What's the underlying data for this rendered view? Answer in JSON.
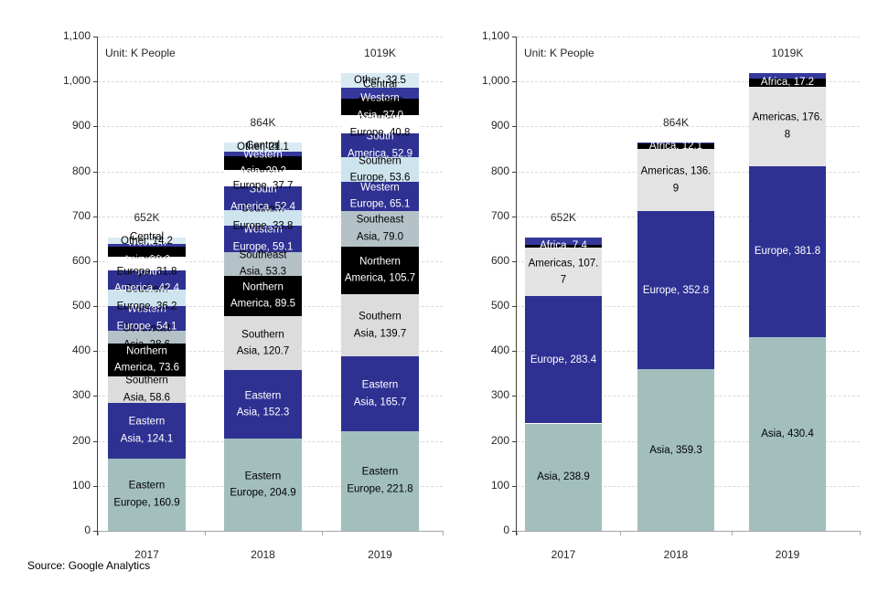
{
  "source_note": "Source: Google Analytics",
  "axis": {
    "tick_labels": [
      "0",
      "100",
      "200",
      "300",
      "400",
      "500",
      "600",
      "700",
      "800",
      "900",
      "1,000",
      "1,100"
    ],
    "max": 1100,
    "step": 100,
    "grid_color": "#D9D9D9",
    "axis_color": "#404040",
    "baseline_color": "#A6A6A6"
  },
  "chart_data": [
    {
      "type": "bar",
      "stacked": true,
      "unit_label": "Unit: K People",
      "categories": [
        "2017",
        "2018",
        "2019"
      ],
      "totals": [
        "652K",
        "864K",
        "1019K"
      ],
      "ylim": [
        0,
        1100
      ],
      "grid": "dashed-horizontal",
      "legend": "none",
      "series": [
        {
          "id": "eastern-europe",
          "name": "Eastern Europe",
          "color": "#A2BFBE",
          "label_color": "#000000",
          "values": [
            160.9,
            204.9,
            221.8
          ],
          "labels": [
            [
              "Eastern",
              "Europe, 160.9"
            ],
            [
              "Eastern",
              "Europe, 204.9"
            ],
            [
              "Eastern",
              "Europe, 221.8"
            ]
          ]
        },
        {
          "id": "eastern-asia",
          "name": "Eastern Asia",
          "color": "#2E3192",
          "label_color": "#FFFFFF",
          "values": [
            124.1,
            152.3,
            165.7
          ],
          "labels": [
            [
              "Eastern",
              "Asia, 124.1"
            ],
            [
              "Eastern",
              "Asia, 152.3"
            ],
            [
              "Eastern",
              "Asia, 165.7"
            ]
          ]
        },
        {
          "id": "southern-asia",
          "name": "Southern Asia",
          "color": "#DCDCDC",
          "label_color": "#000000",
          "values": [
            58.6,
            120.7,
            139.7
          ],
          "labels": [
            [
              "Southern",
              "Asia, 58.6"
            ],
            [
              "Southern",
              "Asia, 120.7"
            ],
            [
              "Southern",
              "Asia, 139.7"
            ]
          ]
        },
        {
          "id": "northern-america",
          "name": "Northern America",
          "color": "#000000",
          "label_color": "#FFFFFF",
          "values": [
            73.6,
            89.5,
            105.7
          ],
          "labels": [
            [
              "Northern",
              "America, 73.6"
            ],
            [
              "Northern",
              "America, 89.5"
            ],
            [
              "Northern",
              "America, 105.7"
            ]
          ]
        },
        {
          "id": "southeast-asia",
          "name": "Southeast Asia",
          "color": "#B4C2C8",
          "label_color": "#000000",
          "values": [
            28.6,
            53.3,
            79.0
          ],
          "labels": [
            [
              "Southeast",
              "Asia, 28.6"
            ],
            [
              "Southeast",
              "Asia, 53.3"
            ],
            [
              "Southeast",
              "Asia, 79.0"
            ]
          ]
        },
        {
          "id": "western-europe",
          "name": "Western Europe",
          "color": "#2E3192",
          "label_color": "#FFFFFF",
          "values": [
            54.1,
            59.1,
            65.1
          ],
          "labels": [
            [
              "Western",
              "Europe, 54.1"
            ],
            [
              "Western",
              "Europe, 59.1"
            ],
            [
              "Western",
              "Europe, 65.1"
            ]
          ]
        },
        {
          "id": "southern-europe",
          "name": "Southern Europe",
          "color": "#CDE4EE",
          "label_color": "#000000",
          "values": [
            36.2,
            33.8,
            53.6
          ],
          "labels": [
            [
              "Southern",
              "Europe, 36.2"
            ],
            [
              "Southern",
              "Europe, 33.8"
            ],
            [
              "Southern",
              "Europe, 53.6"
            ]
          ]
        },
        {
          "id": "south-america",
          "name": "South America",
          "color": "#2E3192",
          "label_color": "#FFFFFF",
          "values": [
            42.4,
            52.4,
            52.9
          ],
          "labels": [
            [
              "South",
              "America, 42.4"
            ],
            [
              "South",
              "America, 52.4"
            ],
            [
              "South",
              "America, 52.9"
            ]
          ]
        },
        {
          "id": "northern-europe",
          "name": "Northern Europe",
          "color": "#FFFFFF",
          "label_color": "#000000",
          "values": [
            31.8,
            37.7,
            40.8
          ],
          "labels": [
            [
              "Northern",
              "Europe, 31.8"
            ],
            [
              "Northern",
              "Europe, 37.7"
            ],
            [
              "Northern",
              "Europe, 40.8"
            ]
          ]
        },
        {
          "id": "western-asia",
          "name": "Western Asia",
          "color": "#000000",
          "label_color": "#FFFFFF",
          "values": [
            22.0,
            29.2,
            37.0
          ],
          "labels": [
            [
              "Western",
              "Asia, 22.0"
            ],
            [
              "Western",
              "Asia, 29.2"
            ],
            [
              "Western",
              "Asia, 37.0"
            ]
          ]
        },
        {
          "id": "central-asia",
          "name": "Central Asia",
          "color": "#34389B",
          "label_color": "#000000",
          "values": [
            5.5,
            10.0,
            25.2
          ],
          "labels": [
            [
              "Central",
              "Asia, 5.5"
            ],
            [
              "Central",
              "Asia, 10.0"
            ],
            [
              "Central",
              "Asia, 25.2"
            ]
          ]
        },
        {
          "id": "other",
          "name": "Other",
          "color": "#D9EAF3",
          "label_color": "#000000",
          "values": [
            14.2,
            21.1,
            32.5
          ],
          "labels": [
            [
              "Other, 14.2"
            ],
            [
              "Other, 21.1"
            ],
            [
              "Other, 32.5"
            ]
          ]
        }
      ]
    },
    {
      "type": "bar",
      "stacked": true,
      "unit_label": "Unit: K People",
      "categories": [
        "2017",
        "2018",
        "2019"
      ],
      "totals": [
        "652K",
        "864K",
        "1019K"
      ],
      "ylim": [
        0,
        1100
      ],
      "grid": "dashed-horizontal",
      "legend": "none",
      "series": [
        {
          "id": "asia",
          "name": "Asia",
          "color": "#A2BFBE",
          "label_color": "#000000",
          "values": [
            238.9,
            359.3,
            430.4
          ],
          "labels": [
            [
              "Asia, 238.9"
            ],
            [
              "Asia, 359.3"
            ],
            [
              "Asia, 430.4"
            ]
          ]
        },
        {
          "id": "europe",
          "name": "Europe",
          "color": "#2E3192",
          "label_color": "#FFFFFF",
          "values": [
            283.4,
            352.8,
            381.8
          ],
          "labels": [
            [
              "Europe, 283.4"
            ],
            [
              "Europe, 352.8"
            ],
            [
              "Europe, 381.8"
            ]
          ]
        },
        {
          "id": "americas",
          "name": "Americas",
          "color": "#E3E3E3",
          "label_color": "#000000",
          "values": [
            107.7,
            136.9,
            176.8
          ],
          "labels": [
            [
              "Americas, 107.",
              "7"
            ],
            [
              "Americas, 136.",
              "9"
            ],
            [
              "Americas, 176.",
              "8"
            ]
          ]
        },
        {
          "id": "africa",
          "name": "Africa",
          "color": "#000000",
          "label_color": "#FFFFFF",
          "values": [
            7.4,
            12.1,
            17.2
          ],
          "labels": [
            [
              "Africa, 7.4"
            ],
            [
              "Africa, 12.1"
            ],
            [
              "Africa, 17.2"
            ]
          ]
        },
        {
          "id": "unlabeled",
          "name": "",
          "color": "#34389B",
          "label_color": "#000000",
          "values": [
            14.6,
            2.9,
            12.8
          ],
          "labels": [
            [],
            [],
            []
          ]
        }
      ]
    }
  ]
}
